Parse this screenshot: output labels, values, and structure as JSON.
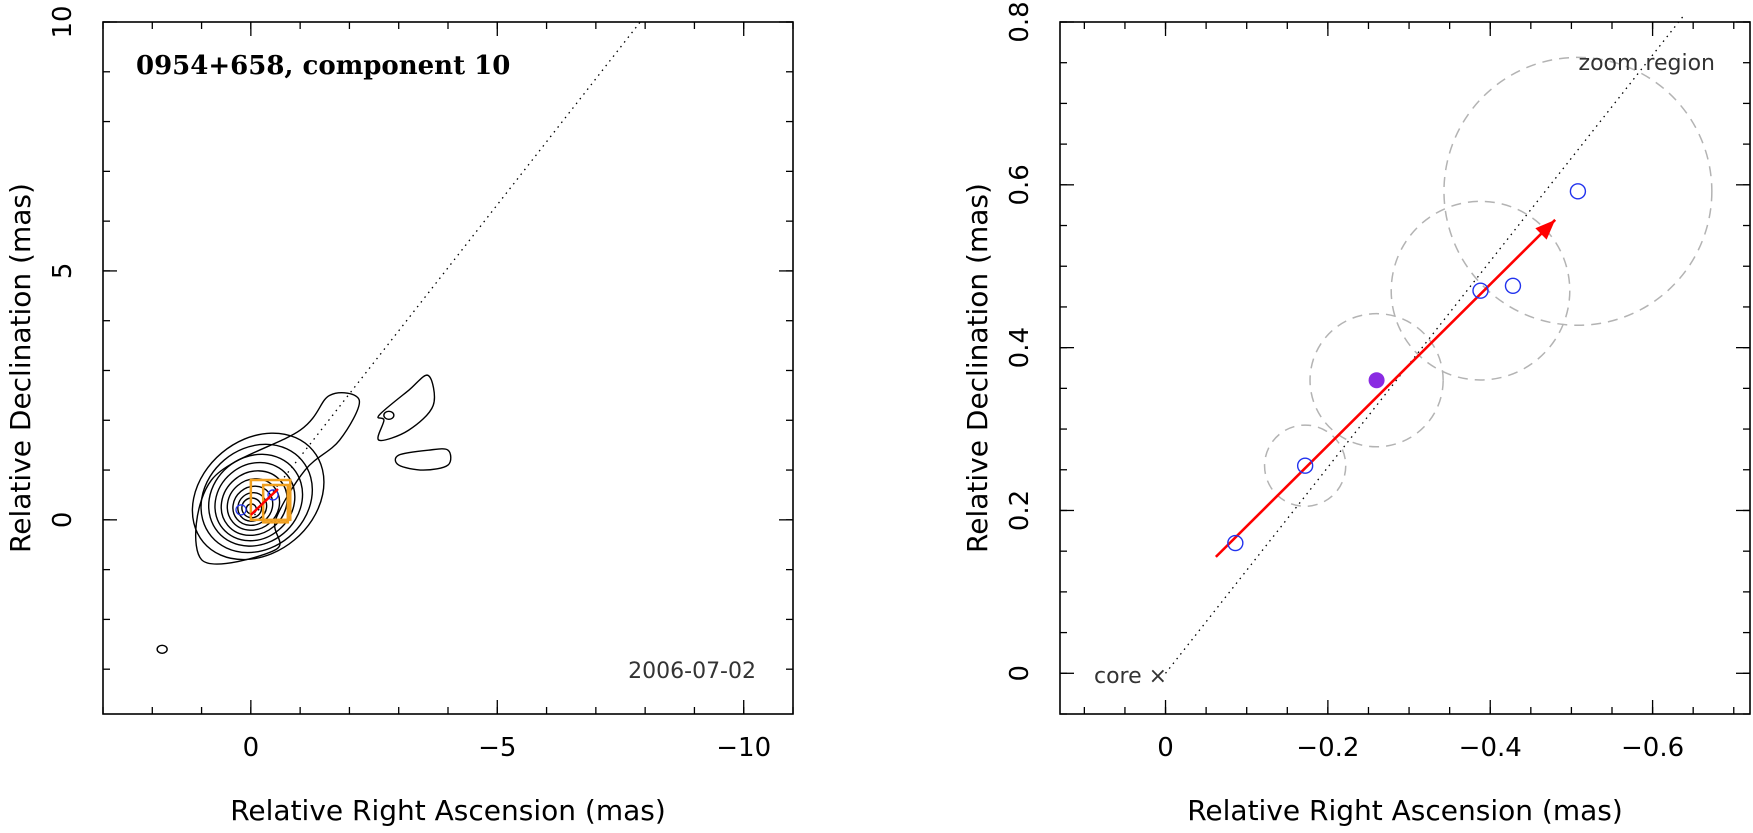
{
  "chart_data": [
    {
      "type": "contour",
      "title": "0954+658, component 10",
      "annotation": "2006-07-02",
      "xlabel": "Relative Right Ascension (mas)",
      "ylabel": "Relative Declination (mas)",
      "xlim": [
        3,
        -11
      ],
      "ylim": [
        -3.9,
        10
      ],
      "xticks": [
        0,
        -5,
        -10
      ],
      "yticks": [
        0,
        5,
        10
      ],
      "xtick_labels": [
        "0",
        "−5",
        "−10"
      ],
      "ytick_labels": [
        "0",
        "5",
        "10"
      ],
      "jet_axis_line": {
        "from": [
          0,
          0
        ],
        "to": [
          -7.9,
          10
        ]
      },
      "contour_center": [
        0,
        0.2
      ],
      "contour_radii": [
        [
          0.1,
          0.1
        ],
        [
          0.2,
          0.2
        ],
        [
          0.3,
          0.28
        ],
        [
          0.42,
          0.38
        ],
        [
          0.55,
          0.5
        ],
        [
          0.7,
          0.62
        ],
        [
          0.85,
          0.75
        ],
        [
          1.0,
          0.88
        ],
        [
          1.2,
          1.02
        ],
        [
          1.45,
          1.15
        ]
      ],
      "outer_contours": [
        [
          [
            -0.5,
            -0.6
          ],
          [
            1.0,
            -0.8
          ],
          [
            0.8,
            0.8
          ],
          [
            -1.0,
            1.8
          ],
          [
            -1.6,
            2.5
          ],
          [
            -2.2,
            2.4
          ],
          [
            -1.8,
            1.6
          ],
          [
            -1.1,
            1.0
          ],
          [
            -0.5,
            0.0
          ]
        ],
        [
          [
            -2.6,
            2.1
          ],
          [
            -3.2,
            2.6
          ],
          [
            -3.6,
            2.9
          ],
          [
            -3.7,
            2.3
          ],
          [
            -3.2,
            1.8
          ],
          [
            -2.6,
            1.6
          ],
          [
            -2.7,
            2.0
          ]
        ],
        [
          [
            -3.0,
            1.3
          ],
          [
            -3.6,
            1.4
          ],
          [
            -4.0,
            1.4
          ],
          [
            -4.0,
            1.1
          ],
          [
            -3.5,
            1.0
          ],
          [
            -3.0,
            1.1
          ]
        ]
      ],
      "small_contours": [
        [
          -2.8,
          2.1
        ],
        [
          1.8,
          -2.6
        ]
      ],
      "zoom_boxes": [
        [
          0,
          0,
          -0.8,
          0.8
        ],
        [
          -0.25,
          -0.05,
          -0.75,
          0.7
        ]
      ],
      "positions": [
        {
          "x": 0.2,
          "y": 0.2
        },
        {
          "x": -0.45,
          "y": 0.5
        }
      ]
    },
    {
      "type": "scatter",
      "title": "",
      "annotations": [
        "zoom region",
        "core ×"
      ],
      "xlabel": "Relative Right Ascension (mas)",
      "ylabel": "Relative Declination (mas)",
      "xlim": [
        0.13,
        -0.72
      ],
      "ylim": [
        -0.05,
        0.8
      ],
      "xticks": [
        0,
        -0.2,
        -0.4,
        -0.6
      ],
      "yticks": [
        0,
        0.2,
        0.4,
        0.6,
        0.8
      ],
      "xtick_labels": [
        "0",
        "−0.2",
        "−0.4",
        "−0.6"
      ],
      "ytick_labels": [
        "0",
        "0.2",
        "0.4",
        "0.6",
        "0.8"
      ],
      "core": {
        "x": 0,
        "y": 0
      },
      "jet_axis_line": {
        "from": [
          0,
          0
        ],
        "to": [
          -0.64,
          0.81
        ]
      },
      "points": [
        {
          "x": -0.086,
          "y": 0.16,
          "filled": false
        },
        {
          "x": -0.172,
          "y": 0.255,
          "filled": false
        },
        {
          "x": -0.26,
          "y": 0.36,
          "filled": true
        },
        {
          "x": -0.388,
          "y": 0.47,
          "filled": false
        },
        {
          "x": -0.428,
          "y": 0.476,
          "filled": false
        },
        {
          "x": -0.508,
          "y": 0.592,
          "filled": false
        }
      ],
      "error_circles": [
        {
          "x": -0.172,
          "y": 0.255,
          "r": 0.05
        },
        {
          "x": -0.26,
          "y": 0.36,
          "r": 0.082
        },
        {
          "x": -0.388,
          "y": 0.47,
          "r": 0.11
        },
        {
          "x": -0.508,
          "y": 0.592,
          "r": 0.165
        }
      ],
      "velocity_arrow": {
        "from": [
          -0.062,
          0.143
        ],
        "to": [
          -0.48,
          0.557
        ]
      },
      "colors": {
        "points": "#2233ee",
        "filled": "#8a2be2",
        "arrow": "#ff0000",
        "circles": "#b3b3b3"
      }
    }
  ]
}
